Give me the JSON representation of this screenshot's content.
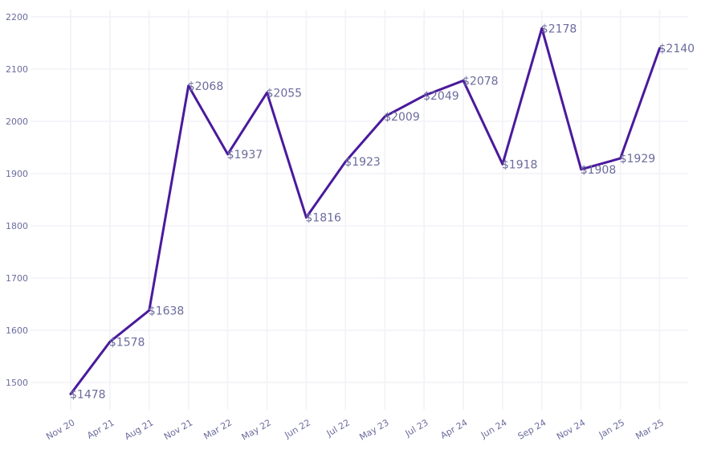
{
  "chart_data": {
    "type": "line",
    "title": "",
    "xlabel": "",
    "ylabel": "",
    "categories": [
      "Nov 20",
      "Apr 21",
      "Aug 21",
      "Nov 21",
      "Mar 22",
      "May 22",
      "Jun 22",
      "Jul 22",
      "May 23",
      "Jul 23",
      "Apr 24",
      "Jun 24",
      "Sep 24",
      "Nov 24",
      "Jan 25",
      "Mar 25"
    ],
    "values": [
      1478,
      1578,
      1638,
      2068,
      1937,
      2055,
      1816,
      1923,
      2009,
      2049,
      2078,
      1918,
      2178,
      1908,
      1929,
      2140
    ],
    "data_labels": [
      "$1478",
      "$1578",
      "$1638",
      "$2068",
      "$1937",
      "$2055",
      "$1816",
      "$1923",
      "$2009",
      "$2049",
      "$2078",
      "$1918",
      "$2178",
      "$1908",
      "$1929",
      "$2140"
    ],
    "yticks": [
      1500,
      1600,
      1700,
      1800,
      1900,
      2000,
      2100,
      2200
    ],
    "ylim": [
      1450,
      2210
    ],
    "grid": true,
    "legend": "none",
    "line_color": "#4a1a9c",
    "label_color": "#6b6b9e"
  }
}
